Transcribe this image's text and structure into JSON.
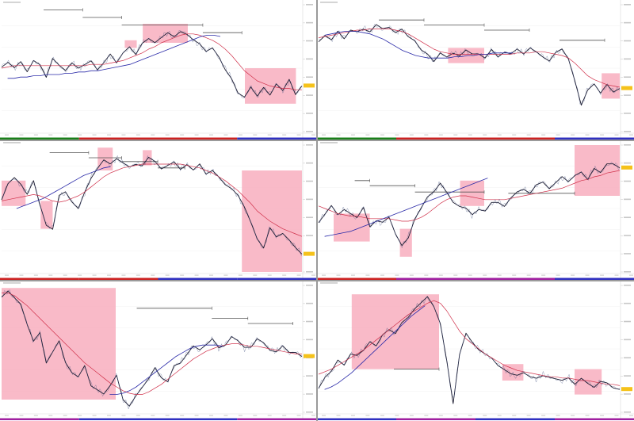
{
  "colors": {
    "background": "#ffffff",
    "price": "#1a1a2e",
    "fast_ma": "#d0304a",
    "slow_ma": "#2a2aa8",
    "zone": "#f7a9ba",
    "price_tag": "#f5c21a",
    "axis_text": "#8a8a8a",
    "border": "#9a9a9a"
  },
  "chart_data": [
    {
      "type": "line",
      "panel": "top-left",
      "title": "",
      "xlabel": "",
      "ylabel": "",
      "series": [
        {
          "values": [
            0.52,
            0.55,
            0.5,
            0.54,
            0.48,
            0.56,
            0.52,
            0.44,
            0.58,
            0.52,
            0.47,
            0.55,
            0.5,
            0.52,
            0.57,
            0.49,
            0.54,
            0.6,
            0.55,
            0.62,
            0.66,
            0.62,
            0.7,
            0.73,
            0.69,
            0.75,
            0.78,
            0.74,
            0.8,
            0.77,
            0.72,
            0.68,
            0.64,
            0.66,
            0.58,
            0.5,
            0.42,
            0.3,
            0.26,
            0.36,
            0.28,
            0.34,
            0.3,
            0.38,
            0.32,
            0.4,
            0.3,
            0.36
          ]
        },
        {
          "values": [
            0.5,
            0.51,
            0.52,
            0.52,
            0.52,
            0.52,
            0.52,
            0.52,
            0.52,
            0.52,
            0.52,
            0.52,
            0.52,
            0.52,
            0.53,
            0.53,
            0.53,
            0.54,
            0.55,
            0.56,
            0.58,
            0.6,
            0.62,
            0.65,
            0.67,
            0.7,
            0.72,
            0.74,
            0.76,
            0.77,
            0.77,
            0.76,
            0.74,
            0.72,
            0.69,
            0.65,
            0.6,
            0.54,
            0.48,
            0.44,
            0.4,
            0.38,
            0.36,
            0.35,
            0.34,
            0.34,
            0.33,
            0.33
          ]
        },
        {
          "values": [
            0.42,
            0.42,
            0.43,
            0.43,
            0.44,
            0.44,
            0.45,
            0.45,
            0.45,
            0.46,
            0.46,
            0.47,
            0.47,
            0.48,
            0.48,
            0.49,
            0.5,
            0.51,
            0.52,
            0.53,
            0.55,
            0.57,
            0.59,
            0.61,
            0.63,
            0.65,
            0.67,
            0.69,
            0.71,
            0.73,
            0.75,
            0.76,
            0.76,
            0.75
          ]
        }
      ],
      "zones": [
        [
          0.41,
          0.45,
          0.66,
          0.72
        ],
        [
          0.47,
          0.62,
          0.7,
          0.85
        ],
        [
          0.81,
          0.98,
          0.22,
          0.5
        ]
      ],
      "steps": [
        [
          0.14,
          0.27,
          0.96
        ],
        [
          0.27,
          0.4,
          0.9
        ],
        [
          0.4,
          0.67,
          0.84
        ],
        [
          0.67,
          0.8,
          0.78
        ]
      ]
    },
    {
      "type": "line",
      "panel": "top-right",
      "title": "",
      "xlabel": "",
      "ylabel": "",
      "series": [
        {
          "values": [
            0.72,
            0.76,
            0.72,
            0.78,
            0.74,
            0.8,
            0.78,
            0.82,
            0.79,
            0.84,
            0.8,
            0.83,
            0.78,
            0.8,
            0.76,
            0.72,
            0.64,
            0.6,
            0.56,
            0.62,
            0.58,
            0.63,
            0.6,
            0.64,
            0.6,
            0.62,
            0.58,
            0.64,
            0.6,
            0.63,
            0.61,
            0.64,
            0.62,
            0.66,
            0.62,
            0.6,
            0.56,
            0.62,
            0.64,
            0.58,
            0.4,
            0.2,
            0.34,
            0.38,
            0.3,
            0.36,
            0.32,
            0.34
          ]
        },
        {
          "values": [
            0.74,
            0.75,
            0.76,
            0.77,
            0.78,
            0.79,
            0.8,
            0.8,
            0.81,
            0.81,
            0.81,
            0.81,
            0.8,
            0.79,
            0.77,
            0.74,
            0.71,
            0.68,
            0.65,
            0.63,
            0.62,
            0.61,
            0.61,
            0.61,
            0.61,
            0.61,
            0.61,
            0.61,
            0.61,
            0.61,
            0.61,
            0.62,
            0.62,
            0.62,
            0.63,
            0.63,
            0.62,
            0.61,
            0.6,
            0.58,
            0.54,
            0.49,
            0.44,
            0.41,
            0.39,
            0.37,
            0.36,
            0.35
          ]
        },
        {
          "values": [
            0.76,
            0.77,
            0.78,
            0.79,
            0.79,
            0.79,
            0.78,
            0.77,
            0.75,
            0.73,
            0.7,
            0.67,
            0.64,
            0.62,
            0.6,
            0.59,
            0.58,
            0.58,
            0.58,
            0.58,
            0.59,
            0.59,
            0.6,
            0.6,
            0.61,
            0.61,
            0.62,
            0.62,
            0.62,
            0.62
          ]
        }
      ],
      "zones": [
        [
          0.43,
          0.55,
          0.54,
          0.66
        ],
        [
          0.94,
          1.0,
          0.26,
          0.46
        ]
      ],
      "steps": [
        [
          0.2,
          0.35,
          0.88
        ],
        [
          0.35,
          0.55,
          0.84
        ],
        [
          0.55,
          0.7,
          0.8
        ],
        [
          0.8,
          0.95,
          0.72
        ]
      ]
    },
    {
      "type": "line",
      "panel": "middle-left",
      "title": "",
      "xlabel": "",
      "ylabel": "",
      "series": [
        {
          "values": [
            0.58,
            0.7,
            0.74,
            0.68,
            0.62,
            0.72,
            0.52,
            0.38,
            0.34,
            0.6,
            0.62,
            0.56,
            0.5,
            0.62,
            0.75,
            0.82,
            0.88,
            0.84,
            0.9,
            0.86,
            0.82,
            0.86,
            0.84,
            0.9,
            0.86,
            0.82,
            0.84,
            0.86,
            0.82,
            0.85,
            0.8,
            0.84,
            0.78,
            0.8,
            0.74,
            0.7,
            0.66,
            0.6,
            0.5,
            0.4,
            0.26,
            0.18,
            0.36,
            0.28,
            0.3,
            0.24,
            0.2,
            0.14
          ]
        },
        {
          "values": [
            0.56,
            0.57,
            0.58,
            0.59,
            0.6,
            0.61,
            0.6,
            0.58,
            0.56,
            0.55,
            0.56,
            0.58,
            0.6,
            0.63,
            0.67,
            0.71,
            0.75,
            0.78,
            0.8,
            0.82,
            0.83,
            0.84,
            0.85,
            0.85,
            0.85,
            0.85,
            0.85,
            0.85,
            0.85,
            0.84,
            0.83,
            0.82,
            0.8,
            0.78,
            0.75,
            0.72,
            0.68,
            0.64,
            0.59,
            0.54,
            0.48,
            0.44,
            0.4,
            0.37,
            0.34,
            0.32,
            0.3,
            0.28
          ]
        },
        {
          "values": [
            0.5,
            0.52,
            0.54,
            0.56,
            0.58,
            0.61,
            0.64,
            0.67,
            0.7,
            0.73,
            0.76,
            0.78,
            0.8,
            0.82,
            0.83
          ]
        }
      ],
      "zones": [
        [
          0.0,
          0.08,
          0.52,
          0.72
        ],
        [
          0.13,
          0.17,
          0.34,
          0.56
        ],
        [
          0.32,
          0.37,
          0.8,
          0.98
        ],
        [
          0.47,
          0.5,
          0.84,
          0.96
        ],
        [
          0.8,
          1.0,
          0.0,
          0.8
        ]
      ],
      "steps": [
        [
          0.16,
          0.29,
          0.94
        ],
        [
          0.29,
          0.4,
          0.9
        ],
        [
          0.4,
          0.52,
          0.87
        ],
        [
          0.52,
          0.61,
          0.82
        ]
      ]
    },
    {
      "type": "line",
      "panel": "middle-right",
      "title": "",
      "xlabel": "",
      "ylabel": "",
      "series": [
        {
          "values": [
            0.4,
            0.46,
            0.52,
            0.44,
            0.5,
            0.46,
            0.42,
            0.52,
            0.36,
            0.4,
            0.38,
            0.44,
            0.3,
            0.2,
            0.28,
            0.42,
            0.5,
            0.58,
            0.64,
            0.7,
            0.62,
            0.56,
            0.52,
            0.5,
            0.44,
            0.5,
            0.48,
            0.54,
            0.56,
            0.52,
            0.58,
            0.62,
            0.66,
            0.62,
            0.68,
            0.72,
            0.66,
            0.7,
            0.74,
            0.72,
            0.76,
            0.78,
            0.74,
            0.82,
            0.78,
            0.84,
            0.86,
            0.82
          ]
        },
        {
          "values": [
            0.52,
            0.5,
            0.48,
            0.46,
            0.45,
            0.44,
            0.44,
            0.43,
            0.42,
            0.42,
            0.42,
            0.42,
            0.41,
            0.4,
            0.4,
            0.41,
            0.43,
            0.46,
            0.5,
            0.54,
            0.57,
            0.59,
            0.6,
            0.6,
            0.59,
            0.58,
            0.57,
            0.57,
            0.57,
            0.57,
            0.58,
            0.59,
            0.6,
            0.61,
            0.62,
            0.63,
            0.64,
            0.65,
            0.66,
            0.68,
            0.7,
            0.72,
            0.73,
            0.75,
            0.76,
            0.78,
            0.79,
            0.8
          ]
        },
        {
          "values": [
            0.28,
            0.29,
            0.3,
            0.31,
            0.32,
            0.34,
            0.36,
            0.38,
            0.4,
            0.42,
            0.44,
            0.46,
            0.48,
            0.5,
            0.52,
            0.54,
            0.56,
            0.58,
            0.6,
            0.62,
            0.64,
            0.66,
            0.68,
            0.7,
            0.72,
            0.74
          ]
        }
      ],
      "zones": [
        [
          0.05,
          0.17,
          0.24,
          0.46
        ],
        [
          0.27,
          0.31,
          0.12,
          0.34
        ],
        [
          0.47,
          0.55,
          0.52,
          0.72
        ],
        [
          0.85,
          1.0,
          0.6,
          1.0
        ]
      ],
      "steps": [
        [
          0.12,
          0.17,
          0.72
        ],
        [
          0.17,
          0.32,
          0.68
        ],
        [
          0.32,
          0.55,
          0.63
        ],
        [
          0.63,
          0.85,
          0.62
        ]
      ]
    },
    {
      "type": "line",
      "panel": "bottom-left",
      "title": "",
      "xlabel": "",
      "ylabel": "",
      "series": [
        {
          "values": [
            0.92,
            0.96,
            0.9,
            0.84,
            0.7,
            0.56,
            0.62,
            0.4,
            0.48,
            0.56,
            0.38,
            0.32,
            0.28,
            0.36,
            0.22,
            0.18,
            0.14,
            0.2,
            0.3,
            0.1,
            0.04,
            0.14,
            0.2,
            0.26,
            0.34,
            0.28,
            0.24,
            0.36,
            0.4,
            0.46,
            0.52,
            0.48,
            0.54,
            0.58,
            0.5,
            0.54,
            0.6,
            0.56,
            0.5,
            0.52,
            0.58,
            0.54,
            0.5,
            0.48,
            0.52,
            0.46,
            0.48,
            0.44
          ]
        },
        {
          "values": [
            0.94,
            0.94,
            0.92,
            0.88,
            0.84,
            0.79,
            0.74,
            0.69,
            0.64,
            0.59,
            0.54,
            0.49,
            0.44,
            0.39,
            0.35,
            0.31,
            0.27,
            0.23,
            0.2,
            0.17,
            0.15,
            0.14,
            0.14,
            0.16,
            0.19,
            0.22,
            0.26,
            0.3,
            0.34,
            0.38,
            0.42,
            0.45,
            0.48,
            0.5,
            0.52,
            0.53,
            0.54,
            0.54,
            0.53,
            0.52,
            0.52,
            0.51,
            0.5,
            0.49,
            0.48,
            0.47,
            0.46,
            0.46
          ]
        },
        {
          "values": [
            0.14,
            0.14,
            0.15,
            0.17,
            0.2,
            0.24,
            0.28,
            0.32,
            0.36,
            0.4,
            0.44,
            0.47,
            0.5,
            0.52,
            0.53,
            0.53,
            0.53,
            0.52
          ]
        }
      ],
      "zones": [
        [
          0.0,
          0.38,
          0.1,
          0.98
        ]
      ],
      "steps": [
        [
          0.45,
          0.7,
          0.82
        ],
        [
          0.7,
          0.82,
          0.74
        ],
        [
          0.82,
          0.97,
          0.7
        ]
      ]
    },
    {
      "type": "line",
      "panel": "bottom-right",
      "title": "",
      "xlabel": "",
      "ylabel": "",
      "series": [
        {
          "values": [
            0.2,
            0.28,
            0.32,
            0.4,
            0.38,
            0.46,
            0.44,
            0.5,
            0.56,
            0.52,
            0.6,
            0.66,
            0.62,
            0.7,
            0.76,
            0.82,
            0.86,
            0.9,
            0.84,
            0.7,
            0.4,
            0.08,
            0.46,
            0.62,
            0.54,
            0.5,
            0.46,
            0.42,
            0.38,
            0.34,
            0.3,
            0.28,
            0.32,
            0.28,
            0.26,
            0.3,
            0.28,
            0.26,
            0.24,
            0.28,
            0.22,
            0.26,
            0.24,
            0.2,
            0.24,
            0.22,
            0.2,
            0.18
          ]
        },
        {
          "values": [
            0.3,
            0.32,
            0.34,
            0.37,
            0.4,
            0.43,
            0.46,
            0.49,
            0.53,
            0.57,
            0.61,
            0.65,
            0.69,
            0.73,
            0.77,
            0.8,
            0.83,
            0.86,
            0.88,
            0.86,
            0.8,
            0.72,
            0.64,
            0.58,
            0.54,
            0.5,
            0.46,
            0.43,
            0.4,
            0.37,
            0.35,
            0.33,
            0.32,
            0.31,
            0.3,
            0.29,
            0.28,
            0.28,
            0.27,
            0.27,
            0.26,
            0.25,
            0.25,
            0.24,
            0.23,
            0.22,
            0.22,
            0.21
          ]
        },
        {
          "values": [
            0.18,
            0.2,
            0.23,
            0.27,
            0.31,
            0.36,
            0.41,
            0.46,
            0.51,
            0.56,
            0.61,
            0.66,
            0.71,
            0.76,
            0.8,
            0.84
          ]
        }
      ],
      "zones": [
        [
          0.11,
          0.4,
          0.34,
          0.93
        ],
        [
          0.61,
          0.68,
          0.25,
          0.38
        ],
        [
          0.85,
          0.94,
          0.14,
          0.34
        ]
      ],
      "steps": [
        [
          0.25,
          0.4,
          0.34
        ]
      ]
    }
  ]
}
